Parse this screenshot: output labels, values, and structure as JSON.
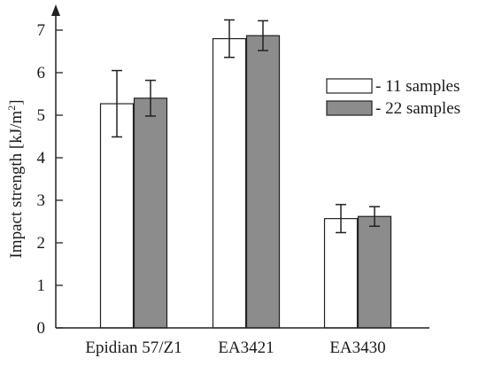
{
  "chart_data": {
    "type": "bar",
    "categories": [
      "Epidian 57/Z1",
      "EA3421",
      "EA3430"
    ],
    "series": [
      {
        "name": "- 11 samples",
        "values": [
          5.27,
          6.8,
          2.57
        ],
        "error": [
          0.78,
          0.44,
          0.33
        ],
        "color": "#ffffff"
      },
      {
        "name": "- 22 samples",
        "values": [
          5.4,
          6.87,
          2.62
        ],
        "error": [
          0.42,
          0.35,
          0.23
        ],
        "color": "#8c8c8c"
      }
    ],
    "ylabel_main": "Impact strength [kJ/m",
    "ylabel_sup": "2",
    "ylabel_end": "]",
    "ylim": [
      0,
      7.4
    ],
    "yticks": [
      "0",
      "1",
      "2",
      "3",
      "4",
      "5",
      "6",
      "7"
    ],
    "grid": false,
    "legend_position": "top-right",
    "edge_color": "#222222"
  }
}
